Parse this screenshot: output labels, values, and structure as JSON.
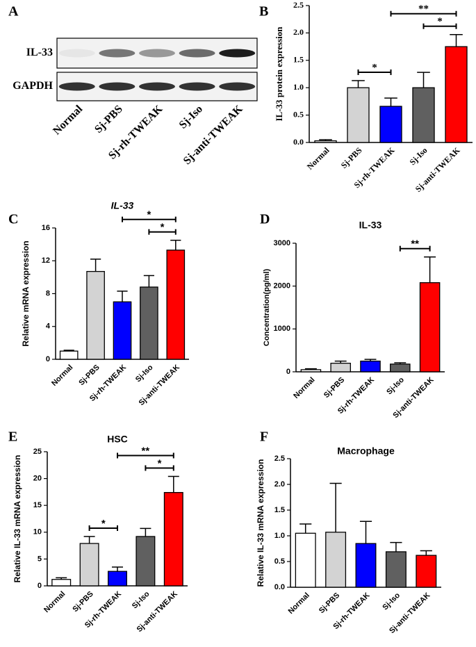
{
  "chart_data": [
    {
      "type": "blot",
      "panel": "A",
      "rows": [
        "IL-33",
        "GAPDH"
      ],
      "categories": [
        "Normal",
        "Sj-PBS",
        "Sj-rh-TWEAK",
        "Sj-Iso",
        "Sj-anti-TWEAK"
      ]
    },
    {
      "type": "bar",
      "panel": "B",
      "ylabel": "IL-33 protein expression",
      "categories": [
        "Normal",
        "Sj-PBS",
        "Sj-rh-TWEAK",
        "Sj-Iso",
        "Sj-anti-TWEAK"
      ],
      "values": [
        0.03,
        1.0,
        0.66,
        1.0,
        1.75
      ],
      "errors": [
        0.02,
        0.13,
        0.15,
        0.28,
        0.22
      ],
      "colors": [
        "#ffffff",
        "#d3d3d3",
        "#0000ff",
        "#606060",
        "#ff0000"
      ],
      "ylim": [
        0,
        2.5
      ],
      "yticks": [
        {
          "value": 0,
          "label": "0.0"
        },
        0.5,
        {
          "value": 1,
          "label": "1.0"
        },
        1.5,
        {
          "value": 2,
          "label": "2.0"
        },
        2.5
      ],
      "annotations": [
        {
          "text": "*",
          "from": 1,
          "to": 2
        },
        {
          "text": "*",
          "from": 3,
          "to": 4
        },
        {
          "text": "**",
          "from": 2,
          "to": 4
        }
      ]
    },
    {
      "type": "bar",
      "panel": "C",
      "title": "IL-33",
      "ylabel": "Relative mRNA expression",
      "categories": [
        "Normal",
        "Sj-PBS",
        "Sj-rh-TWEAK",
        "Sj-Iso",
        "Sj-anti-TWEAK"
      ],
      "values": [
        1.0,
        10.7,
        7.0,
        8.8,
        13.3
      ],
      "errors": [
        0.1,
        1.5,
        1.3,
        1.4,
        1.2
      ],
      "colors": [
        "#ffffff",
        "#d3d3d3",
        "#0000ff",
        "#606060",
        "#ff0000"
      ],
      "ylim": [
        0,
        16
      ],
      "yticks": [
        0,
        4,
        8,
        12,
        16
      ],
      "annotations": [
        {
          "text": "*",
          "from": 3,
          "to": 4
        },
        {
          "text": "*",
          "from": 2,
          "to": 4
        }
      ]
    },
    {
      "type": "bar",
      "panel": "D",
      "title": "IL-33",
      "ylabel": "Concentration(pg/ml)",
      "categories": [
        "Normal",
        "Sj-PBS",
        "Sj-rh-TWEAK",
        "Sj-Iso",
        "Sj-anti-TWEAK"
      ],
      "values": [
        50,
        200,
        250,
        180,
        2080
      ],
      "errors": [
        20,
        50,
        40,
        30,
        600
      ],
      "colors": [
        "#ffffff",
        "#d3d3d3",
        "#0000ff",
        "#606060",
        "#ff0000"
      ],
      "ylim": [
        0,
        3000
      ],
      "yticks": [
        0,
        1000,
        2000,
        3000
      ],
      "annotations": [
        {
          "text": "**",
          "from": 3,
          "to": 4
        }
      ]
    },
    {
      "type": "bar",
      "panel": "E",
      "title": "HSC",
      "ylabel": "Relative IL-33 mRNA expression",
      "categories": [
        "Normal",
        "Sj-PBS",
        "Sj-rh-TWEAK",
        "Sj-Iso",
        "Sj-anti-TWEAK"
      ],
      "values": [
        1.2,
        7.9,
        2.7,
        9.2,
        17.4
      ],
      "errors": [
        0.3,
        1.3,
        0.8,
        1.5,
        3.0
      ],
      "colors": [
        "#ffffff",
        "#d3d3d3",
        "#0000ff",
        "#606060",
        "#ff0000"
      ],
      "ylim": [
        0,
        25
      ],
      "yticks": [
        0,
        5,
        10,
        15,
        20,
        25
      ],
      "annotations": [
        {
          "text": "*",
          "from": 1,
          "to": 2
        },
        {
          "text": "*",
          "from": 3,
          "to": 4
        },
        {
          "text": "**",
          "from": 2,
          "to": 4
        }
      ]
    },
    {
      "type": "bar",
      "panel": "F",
      "title": "Macrophage",
      "ylabel": "Relative IL-33 mRNA expression",
      "categories": [
        "Normal",
        "Sj-PBS",
        "Sj-rh-TWEAK",
        "Sj-Iso",
        "Sj-anti-TWEAK"
      ],
      "values": [
        1.05,
        1.07,
        0.85,
        0.69,
        0.62
      ],
      "errors": [
        0.18,
        0.95,
        0.43,
        0.18,
        0.09
      ],
      "colors": [
        "#ffffff",
        "#d3d3d3",
        "#0000ff",
        "#606060",
        "#ff0000"
      ],
      "ylim": [
        0,
        2.5
      ],
      "yticks": [
        {
          "value": 0,
          "label": "0.0"
        },
        0.5,
        {
          "value": 1,
          "label": "1.0"
        },
        1.5,
        {
          "value": 2,
          "label": "2.0"
        },
        2.5
      ],
      "annotations": []
    }
  ]
}
